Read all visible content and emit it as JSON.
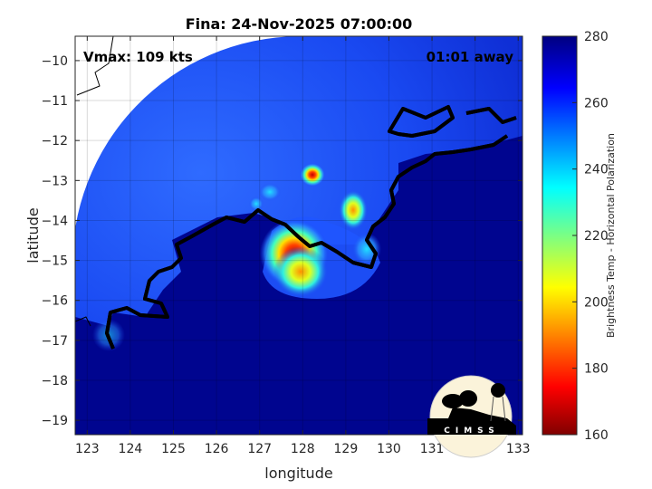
{
  "chart_data": {
    "type": "heatmap",
    "title": "Fina: 24-Nov-2025 07:00:00",
    "xlabel": "longitude",
    "ylabel": "latitude",
    "xlim": [
      122.72,
      133.1
    ],
    "ylim": [
      -19.36,
      -9.39
    ],
    "xticks": [
      123,
      124,
      125,
      126,
      127,
      128,
      129,
      130,
      131,
      132,
      133
    ],
    "yticks": [
      -10,
      -11,
      -12,
      -13,
      -14,
      -15,
      -16,
      -17,
      -18,
      -19
    ],
    "grid": true,
    "annotations": {
      "vmax": "Vmax: 109 kts",
      "time_away": "01:01 away"
    },
    "colorbar": {
      "label": "Brightness Temp - Horizontal Polarization",
      "range": [
        160,
        280
      ],
      "ticks": [
        160,
        180,
        200,
        220,
        240,
        260,
        280
      ],
      "colormap": "jet"
    },
    "features": [
      {
        "name": "eyewall-west",
        "lon": 127.9,
        "lat": -14.4,
        "min_temp": 185
      },
      {
        "name": "convection-north",
        "lon": 128.2,
        "lat": -12.9,
        "min_temp": 190
      },
      {
        "name": "convection-east",
        "lon": 129.2,
        "lat": -13.8,
        "min_temp": 200
      }
    ],
    "logo_text": "CIMSS"
  }
}
